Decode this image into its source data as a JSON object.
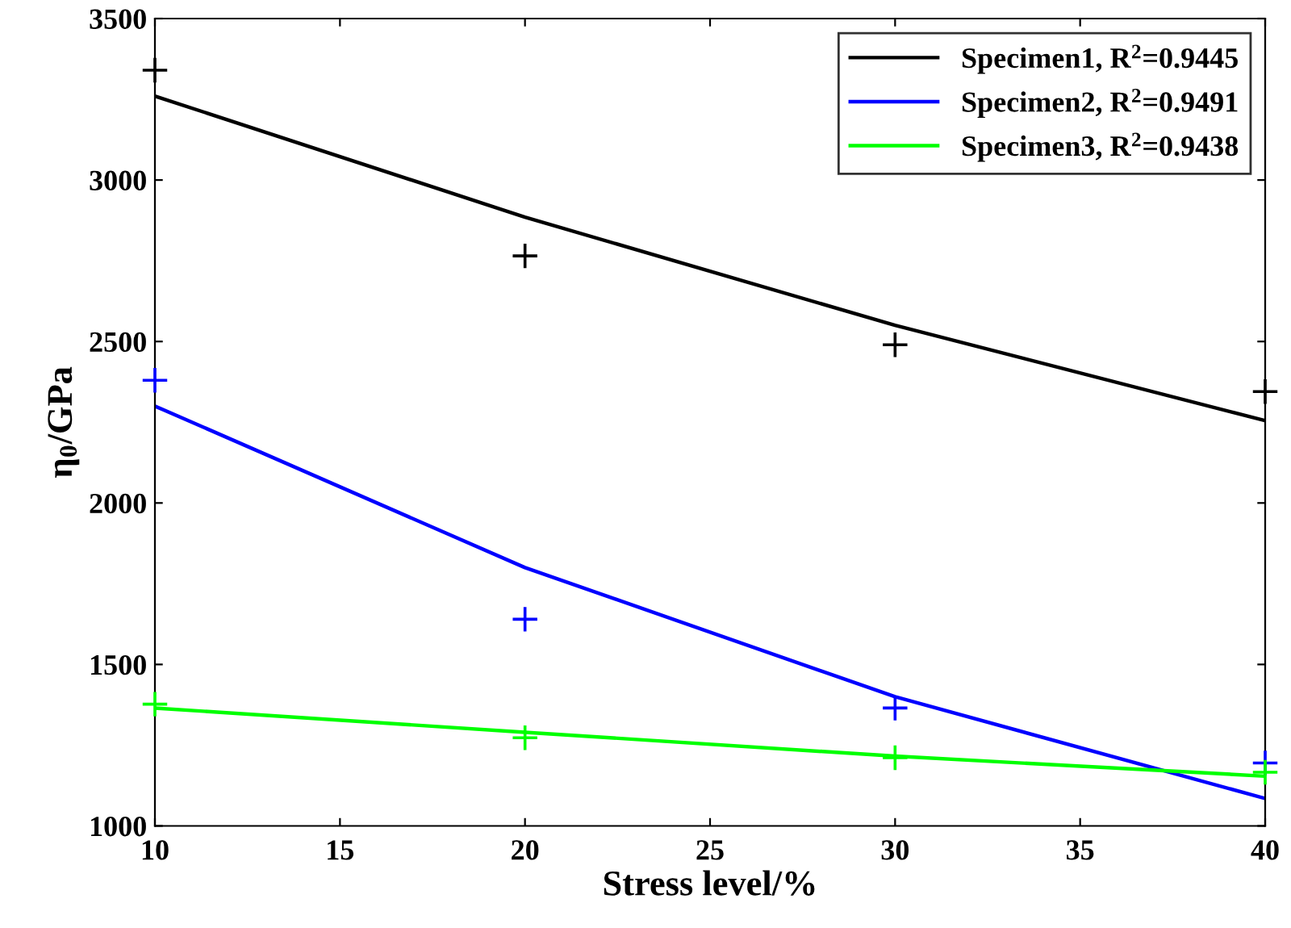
{
  "chart_data": {
    "type": "scatter",
    "xlabel": "Stress level/%",
    "ylabel": "η$_{0}$/GPa",
    "x": [
      10,
      20,
      30,
      40
    ],
    "series": [
      {
        "type": "line",
        "name": "Specimen1, R$^{2}$=0.9445",
        "color": "#000000",
        "values": [
          3260,
          2885,
          2550,
          2255
        ],
        "marker": "none",
        "line_style": "solid"
      },
      {
        "type": "line",
        "name": "Specimen2, R$^{2}$=0.9491",
        "color": "#0000ff",
        "values": [
          2300,
          1800,
          1400,
          1085
        ],
        "marker": "none",
        "line_style": "solid"
      },
      {
        "type": "line",
        "name": "Specimen3, R$^{2}$=0.9438",
        "color": "#00ff00",
        "values": [
          1365,
          1290,
          1216,
          1154
        ],
        "marker": "none",
        "line_style": "solid"
      },
      {
        "color": "#000000",
        "values": [
          3340,
          2765,
          2490,
          2345
        ],
        "marker": "cross"
      },
      {
        "color": "#0000ff",
        "values": [
          2380,
          1640,
          1365,
          1195
        ],
        "marker": "cross"
      },
      {
        "color": "#00ff00",
        "values": [
          1377,
          1273,
          1211,
          1166
        ],
        "marker": "cross"
      }
    ],
    "xlim": [
      10,
      40
    ],
    "xticks": [
      10,
      15,
      20,
      25,
      30,
      35,
      40
    ],
    "ylim": [
      1000,
      3500
    ],
    "yticks": [
      1000,
      1500,
      2000,
      2500,
      3000,
      3500
    ],
    "grid": false,
    "legend": "top right"
  }
}
